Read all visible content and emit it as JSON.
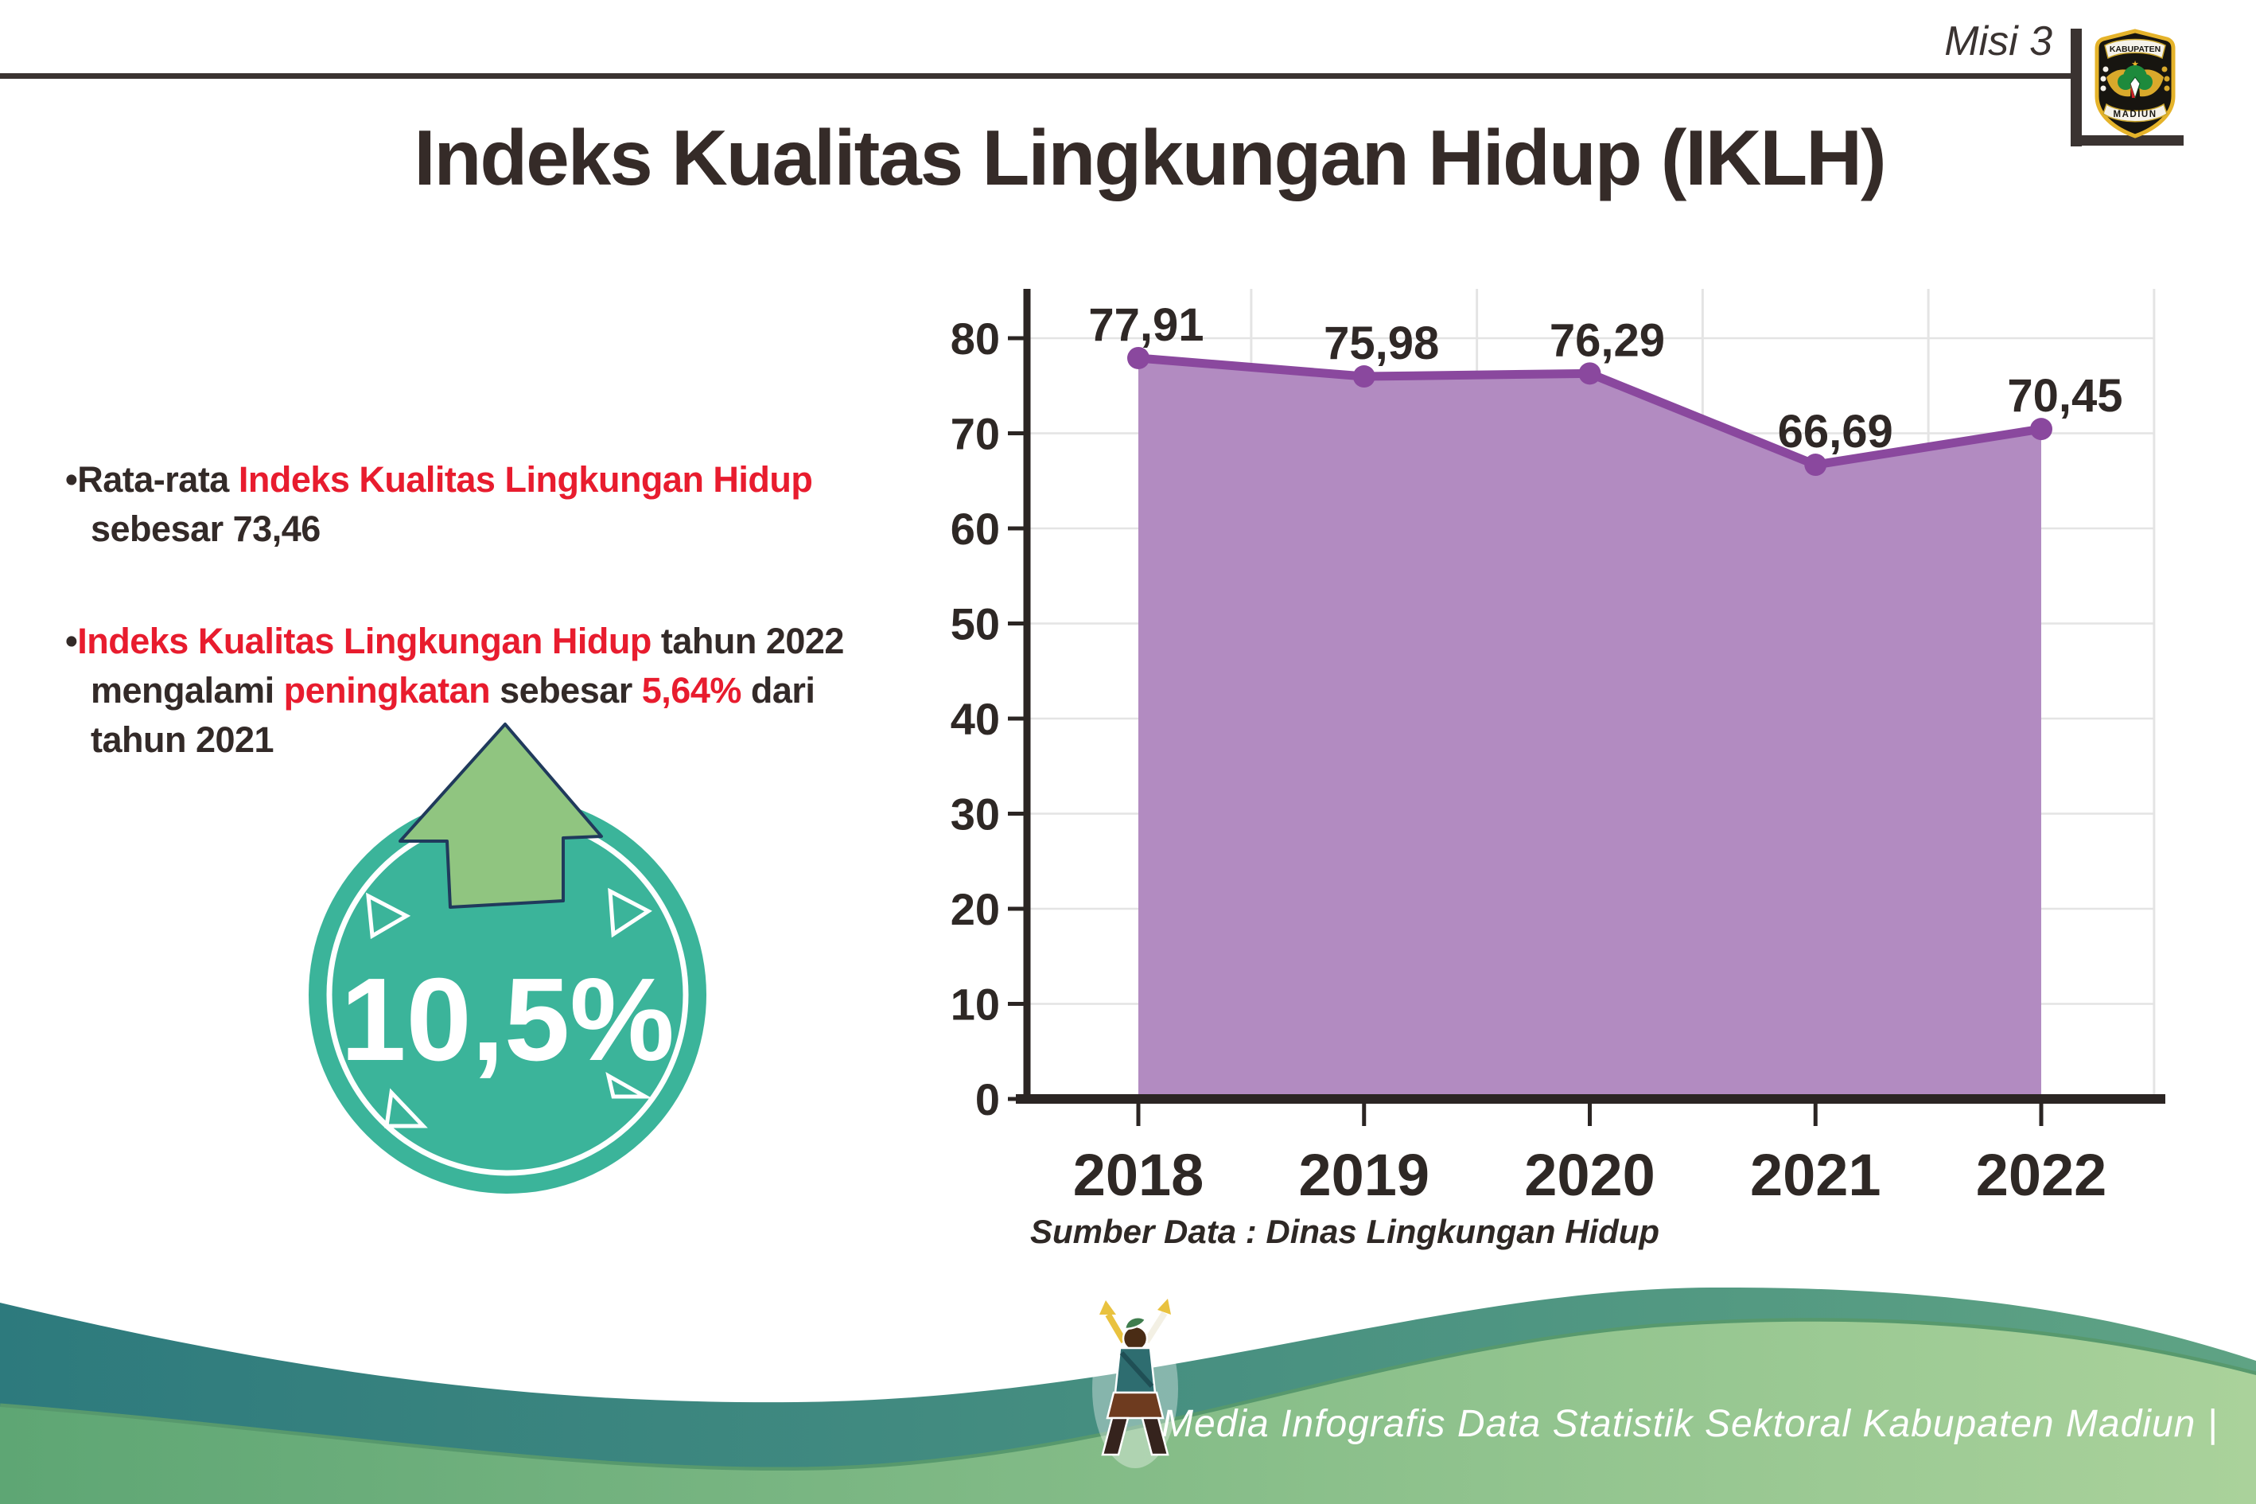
{
  "header": {
    "misi_label": "Misi 3",
    "title": "Indeks Kualitas Lingkungan Hidup (IKLH)",
    "logo": {
      "top_text": "KABUPATEN",
      "bottom_text": "MADIUN"
    }
  },
  "bullets": [
    {
      "marker": "•",
      "lines": [
        [
          {
            "t": "Rata-rata ",
            "c": "dark"
          },
          {
            "t": "Indeks Kualitas Lingkungan Hidup",
            "c": "red"
          }
        ],
        [
          {
            "t": "sebesar 73,46",
            "c": "dark"
          }
        ]
      ]
    },
    {
      "marker": "•",
      "lines": [
        [
          {
            "t": "Indeks Kualitas Lingkungan Hidup",
            "c": "red"
          },
          {
            "t": " tahun 2022",
            "c": "dark"
          }
        ],
        [
          {
            "t": "mengalami ",
            "c": "dark"
          },
          {
            "t": "peningkatan",
            "c": "red"
          },
          {
            "t": " sebesar ",
            "c": "dark"
          },
          {
            "t": "5,64%",
            "c": "red"
          },
          {
            "t": " dari",
            "c": "dark"
          }
        ],
        [
          {
            "t": "tahun 2021",
            "c": "dark"
          }
        ]
      ]
    }
  ],
  "badge": {
    "value_label": "10,5%"
  },
  "chart_data": {
    "type": "area",
    "categories": [
      "2018",
      "2019",
      "2020",
      "2021",
      "2022"
    ],
    "values": [
      77.91,
      75.98,
      76.29,
      66.69,
      70.45
    ],
    "value_labels": [
      "77,91",
      "75,98",
      "76,29",
      "66,69",
      "70,45"
    ],
    "title": "Indeks Kualitas Lingkungan Hidup (IKLH)",
    "xlabel": "",
    "ylabel": "",
    "y_ticks": [
      0,
      10,
      20,
      30,
      40,
      50,
      60,
      70,
      80
    ],
    "ylim": [
      0,
      85
    ],
    "grid": true,
    "legend": "none",
    "source_note": "Sumber Data : Dinas Lingkungan Hidup"
  },
  "footer": {
    "credit_text": "Media Infografis Data Statistik Sektoral Kabupaten Madiun |"
  },
  "accent_colors": {
    "dark_text": "#332a28",
    "red_text": "#e81c2e",
    "chart_area": "#b28bc1",
    "chart_line": "#8a489e",
    "chart_marker": "#8a489e",
    "badge_teal": "#3bb49a",
    "arrow_green": "#90c580",
    "arrow_outline_navy": "#203a5c",
    "footer_teal": "#2d7a7d",
    "footer_green": "#6fb57b"
  }
}
